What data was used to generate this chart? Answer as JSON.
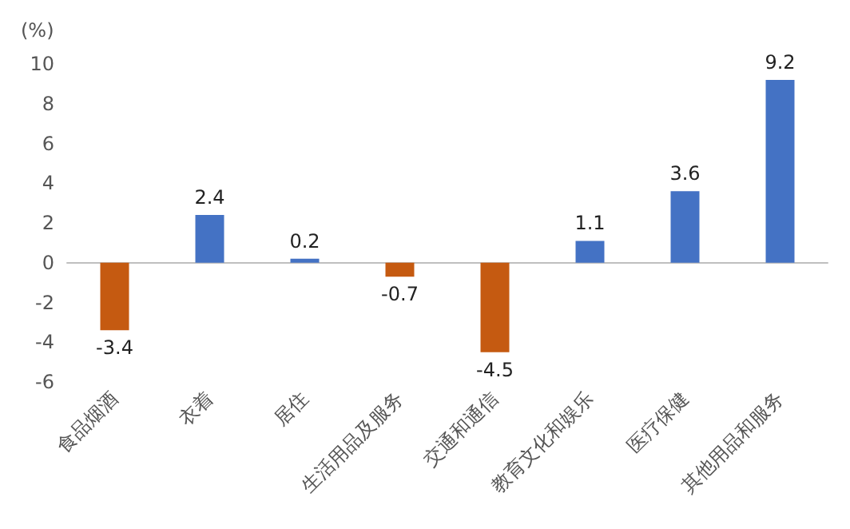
{
  "chart_data": {
    "type": "bar",
    "ylabel": "(%)",
    "categories": [
      "食品烟酒",
      "衣着",
      "居住",
      "生活用品及服务",
      "交通和通信",
      "教育文化和娱乐",
      "医疗保健",
      "其他用品和服务"
    ],
    "values": [
      -3.4,
      2.4,
      0.2,
      -0.7,
      -4.5,
      1.1,
      3.6,
      9.2
    ],
    "colors": [
      "#c55a11",
      "#4472c4",
      "#4472c4",
      "#c55a11",
      "#c55a11",
      "#4472c4",
      "#4472c4",
      "#4472c4"
    ],
    "ylim": [
      -6,
      10
    ],
    "yticks": [
      -6,
      -4,
      -2,
      0,
      2,
      4,
      6,
      8,
      10
    ],
    "data_labels": true
  }
}
